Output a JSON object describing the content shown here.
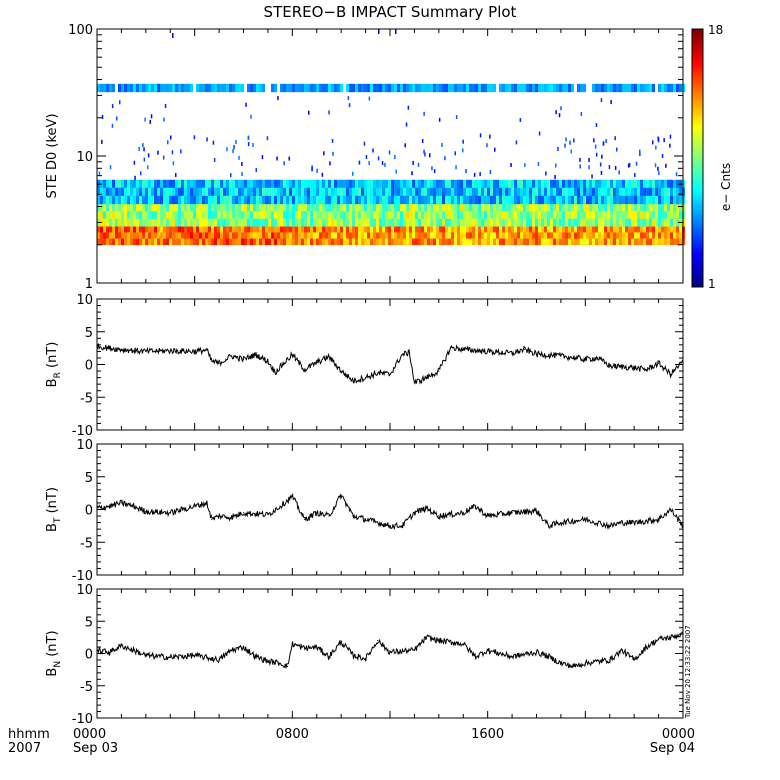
{
  "title": "STEREO−B IMPACT Summary Plot",
  "stamp": "Tue Nov 20 12:33:22 2007",
  "time_axis": {
    "label_line1": "hhmm",
    "label_line2": "2007",
    "ticks": [
      {
        "hours": 0,
        "label": "0000",
        "date": "Sep 03"
      },
      {
        "hours": 8,
        "label": "0800",
        "date": ""
      },
      {
        "hours": 16,
        "label": "1600",
        "date": ""
      },
      {
        "hours": 24,
        "label": "0000",
        "date": "Sep 04"
      }
    ]
  },
  "colorbar": {
    "min_label": "1",
    "max_label": "18",
    "label": "e− Cnts"
  },
  "chart_data": [
    {
      "type": "heatmap",
      "ylabel": "STE D0 (keV)",
      "yscale": "log",
      "ylim": [
        1,
        100
      ],
      "ytick_labels": [
        "1",
        "10",
        "100"
      ],
      "x_range_hours": [
        0,
        24
      ],
      "bands": [
        {
          "e_low": 2.0,
          "e_high": 2.8,
          "level": "high (orange-red)"
        },
        {
          "e_low": 2.8,
          "e_high": 4.2,
          "level": "medium (yellow-green)"
        },
        {
          "e_low": 4.2,
          "e_high": 6.5,
          "level": "low (cyan-blue)"
        },
        {
          "e_low": 32,
          "e_high": 37,
          "level": "medium-low (cyan-blue stripe)"
        }
      ]
    },
    {
      "type": "line",
      "ylabel_main": "B",
      "ylabel_sub": "R",
      "ylabel_unit": " (nT)",
      "ylim": [
        -10,
        10
      ],
      "ytick_labels": [
        "-10",
        "-5",
        "0",
        "5",
        "10"
      ],
      "x_hours": [
        0,
        0.5,
        1,
        2,
        3,
        4,
        4.5,
        4.7,
        5,
        5.5,
        6,
        6.5,
        7,
        7.3,
        7.6,
        8,
        8.5,
        9,
        9.5,
        10,
        10.5,
        11,
        11.5,
        12,
        12.5,
        12.8,
        13,
        13.5,
        14,
        14.5,
        15,
        16,
        17,
        17.5,
        18,
        19,
        20,
        20.5,
        21,
        22,
        22.5,
        23,
        23.5,
        24
      ],
      "values": [
        2.8,
        2.5,
        2.3,
        2.0,
        2.1,
        2.0,
        2.2,
        0.5,
        0.2,
        1.3,
        0.8,
        1.5,
        0.5,
        -1.2,
        0.0,
        1.5,
        -0.8,
        0.3,
        1.2,
        -1.0,
        -2.5,
        -2.0,
        -1.3,
        -1.5,
        1.5,
        1.8,
        -2.8,
        -2.0,
        -1.0,
        2.6,
        2.3,
        2.0,
        1.7,
        2.3,
        1.6,
        1.3,
        0.8,
        1.0,
        -0.2,
        -0.5,
        -0.8,
        0.2,
        -1.5,
        0.5
      ]
    },
    {
      "type": "line",
      "ylabel_main": "B",
      "ylabel_sub": "T",
      "ylabel_unit": " (nT)",
      "ylim": [
        -10,
        10
      ],
      "ytick_labels": [
        "-10",
        "-5",
        "0",
        "5",
        "10"
      ],
      "x_hours": [
        0,
        0.5,
        1,
        1.5,
        2,
        3,
        4,
        4.5,
        4.7,
        5,
        5.5,
        6,
        7,
        7.5,
        8,
        8.5,
        9,
        9.5,
        10,
        10.5,
        11,
        12,
        12.5,
        13,
        13.5,
        14,
        15,
        15.5,
        16,
        17,
        18,
        18.5,
        19,
        20,
        21,
        21.5,
        22,
        23,
        23.5,
        24
      ],
      "values": [
        0.2,
        0.5,
        1.0,
        0.5,
        -0.3,
        -0.5,
        0.5,
        1.0,
        -1.5,
        -1.0,
        -1.2,
        -0.5,
        -0.8,
        0.5,
        2.0,
        -1.5,
        -0.5,
        -1.0,
        2.2,
        -1.0,
        -1.5,
        -2.5,
        -2.5,
        -0.5,
        0.2,
        -1.0,
        -0.5,
        0.5,
        -1.0,
        -0.5,
        -0.2,
        -2.5,
        -2.0,
        -1.5,
        -2.5,
        -2.0,
        -2.0,
        -1.5,
        0.0,
        -2.5
      ]
    },
    {
      "type": "line",
      "ylabel_main": "B",
      "ylabel_sub": "N",
      "ylabel_unit": " (nT)",
      "ylim": [
        -10,
        10
      ],
      "ytick_labels": [
        "-10",
        "-5",
        "0",
        "5",
        "10"
      ],
      "x_hours": [
        0,
        0.5,
        1,
        1.5,
        2,
        3,
        4,
        5,
        5.5,
        6,
        6.5,
        7,
        7.5,
        7.8,
        8,
        8.5,
        9,
        9.5,
        10,
        10.5,
        11,
        11.5,
        12,
        13,
        13.5,
        14,
        15,
        15.5,
        16,
        17,
        18,
        18.5,
        19,
        19.5,
        20,
        21,
        21.5,
        22,
        22.5,
        23,
        23.5,
        24
      ],
      "values": [
        0.5,
        0.2,
        1.2,
        0.5,
        -0.3,
        -0.6,
        -0.3,
        -1.0,
        0.5,
        1.0,
        -0.5,
        -1.2,
        -1.5,
        -2.0,
        1.5,
        0.8,
        1.0,
        -0.5,
        1.8,
        -0.3,
        -0.8,
        2.0,
        0.2,
        0.5,
        2.5,
        2.0,
        1.5,
        -0.5,
        0.5,
        -0.5,
        0.2,
        -0.5,
        -1.5,
        -2.0,
        -1.5,
        -1.0,
        0.5,
        -1.0,
        1.0,
        2.2,
        2.5,
        3.0
      ]
    }
  ]
}
